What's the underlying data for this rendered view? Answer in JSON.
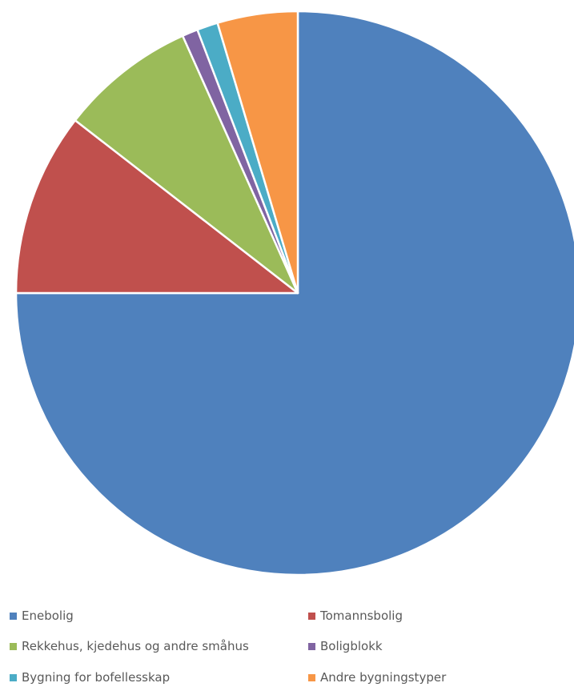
{
  "chart_data": {
    "type": "pie",
    "title": "",
    "legend_position": "bottom",
    "slices": [
      {
        "label": "Enebolig",
        "value": 75.0,
        "color": "#4F81BD"
      },
      {
        "label": "Tomannsbolig",
        "value": 10.5,
        "color": "#C0504D"
      },
      {
        "label": "Rekkehus, kjedehus og andre småhus",
        "value": 7.8,
        "color": "#9BBB59"
      },
      {
        "label": "Boligblokk",
        "value": 0.9,
        "color": "#8064A2"
      },
      {
        "label": "Bygning for bofellesskap",
        "value": 1.2,
        "color": "#4BACC6"
      },
      {
        "label": "Andre bygningstyper",
        "value": 4.6,
        "color": "#F79646"
      }
    ]
  }
}
